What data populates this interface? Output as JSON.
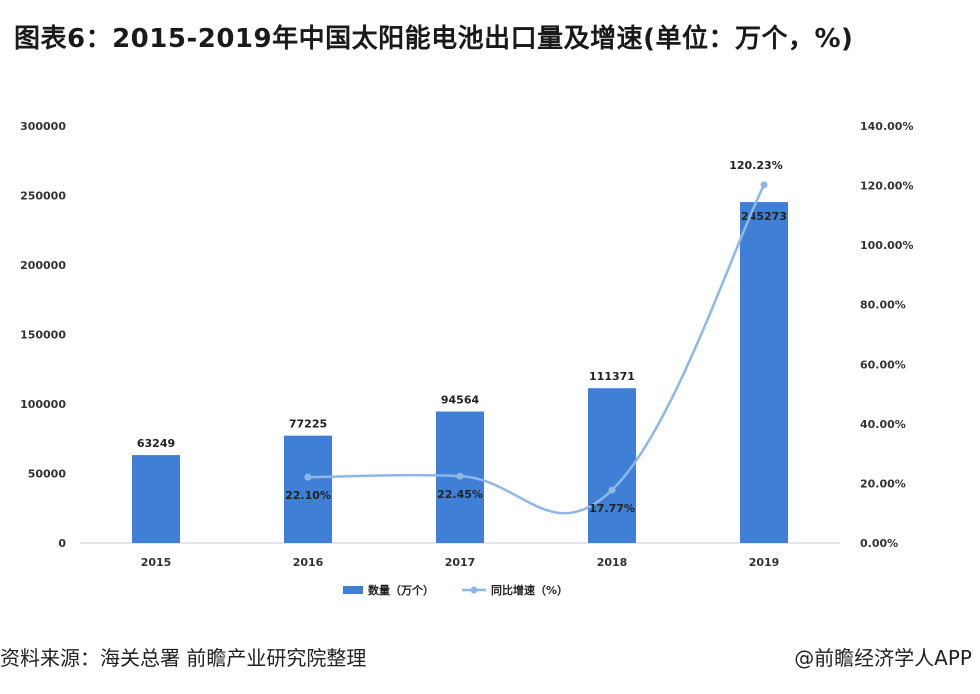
{
  "title": "图表6：2015-2019年中国太阳能电池出口量及增速(单位：万个，%)",
  "footer": {
    "source": "资料来源：海关总署 前瞻产业研究院整理",
    "brand": "@前瞻经济学人APP"
  },
  "colors": {
    "bar": "#3f80d6",
    "line": "#8fb7e6"
  },
  "chart_data": {
    "type": "bar",
    "categories": [
      "2015",
      "2016",
      "2017",
      "2018",
      "2019"
    ],
    "series": [
      {
        "name": "数量（万个）",
        "type": "bar",
        "axis": "left",
        "values": [
          63249,
          77225,
          94564,
          111371,
          245273
        ]
      },
      {
        "name": "同比增速（%）",
        "type": "line",
        "axis": "right",
        "values": [
          null,
          22.1,
          22.45,
          17.77,
          120.23
        ]
      }
    ],
    "bar_labels": [
      "63249",
      "77225",
      "94564",
      "111371",
      "245273"
    ],
    "line_labels": [
      "",
      "22.10%",
      "22.45%",
      "17.77%",
      "120.23%"
    ],
    "ylim_left": [
      0,
      300000
    ],
    "yticks_left": [
      "0",
      "50000",
      "100000",
      "150000",
      "200000",
      "250000",
      "300000"
    ],
    "ylim_right": [
      0,
      140
    ],
    "yticks_right": [
      "0.00%",
      "20.00%",
      "40.00%",
      "60.00%",
      "80.00%",
      "100.00%",
      "120.00%",
      "140.00%"
    ],
    "grid": false,
    "legend_position": "bottom"
  }
}
